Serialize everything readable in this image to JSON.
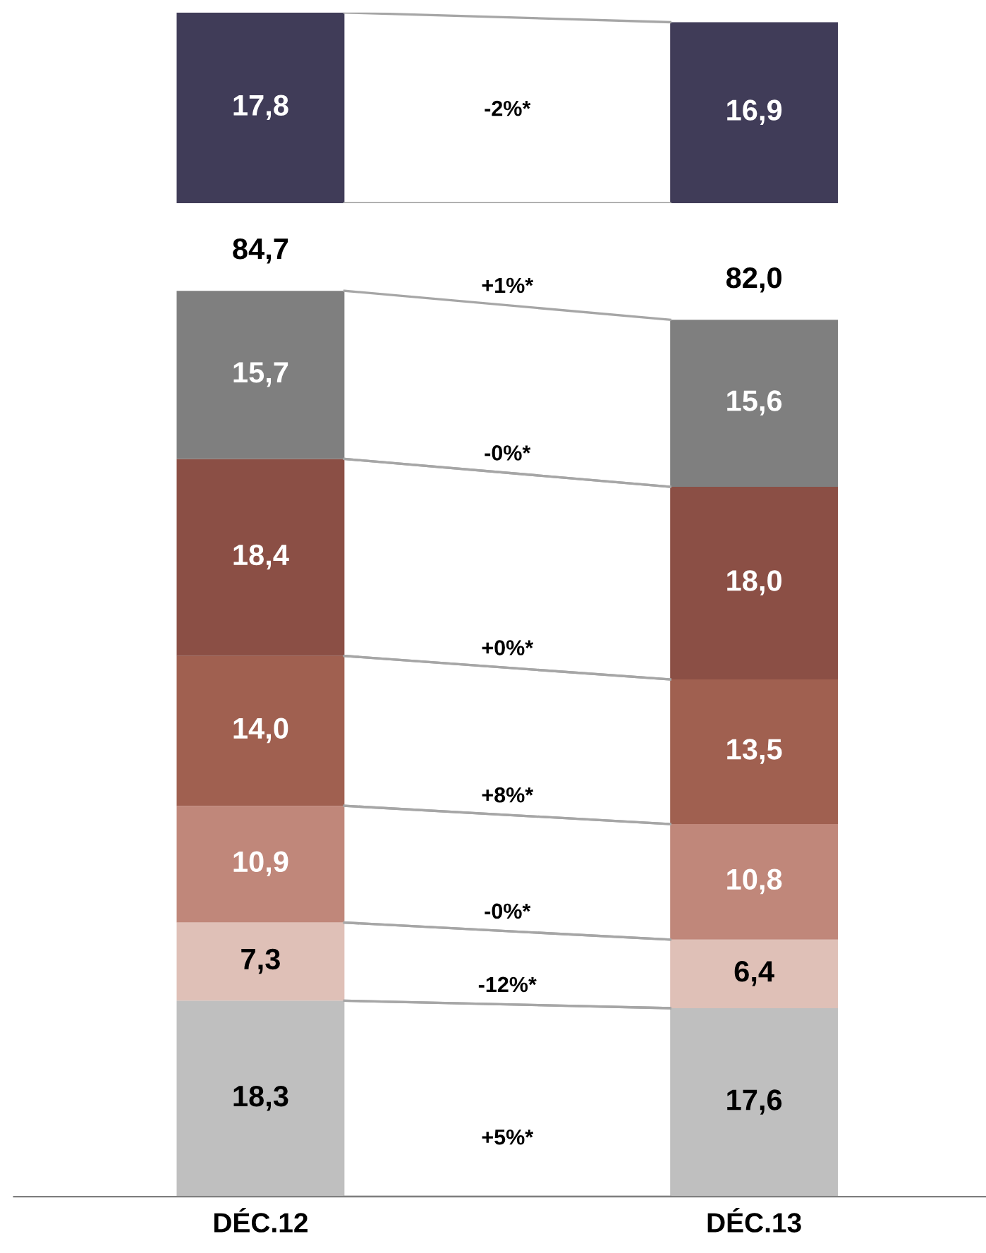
{
  "chart_data": [
    {
      "type": "bar",
      "stacked": true,
      "categories": [
        null,
        null
      ],
      "tick_labels": false,
      "series": [
        {
          "color": "#403c58",
          "values": [
            17.8,
            16.9
          ],
          "value_labels": [
            "17,8",
            "16,9"
          ]
        }
      ],
      "annotations": [
        "-2%*"
      ]
    },
    {
      "type": "bar",
      "stacked": true,
      "categories": [
        "DÉC.12",
        "DÉC.13"
      ],
      "tick_labels": "x",
      "series": [
        {
          "color": "#bfbfbf",
          "values": [
            18.3,
            17.6
          ],
          "value_labels": [
            "18,3",
            "17,6"
          ]
        },
        {
          "color": "#dfc0b7",
          "values": [
            7.3,
            6.4
          ],
          "value_labels": [
            "7,3",
            "6,4"
          ]
        },
        {
          "color": "#c0877a",
          "values": [
            10.9,
            10.8
          ],
          "value_labels": [
            "10,9",
            "10,8"
          ]
        },
        {
          "color": "#a06050",
          "values": [
            14.0,
            13.5
          ],
          "value_labels": [
            "14,0",
            "13,5"
          ]
        },
        {
          "color": "#8b4f45",
          "values": [
            18.4,
            18.0
          ],
          "value_labels": [
            "18,4",
            "18,0"
          ]
        },
        {
          "color": "#7f7f7f",
          "values": [
            15.7,
            15.6
          ],
          "value_labels": [
            "15,7",
            "15,6"
          ]
        }
      ],
      "totals": [
        "84,7",
        "82,0"
      ],
      "annotations": [
        "+5%*",
        "-12%*",
        "-0%*",
        "+8%*",
        "+0%*",
        "-0%*",
        "+1%*"
      ]
    }
  ]
}
